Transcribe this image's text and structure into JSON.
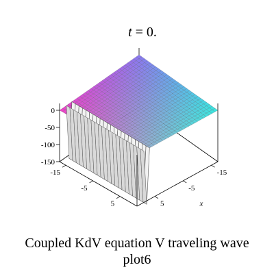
{
  "chart_data": {
    "type": "surface3d",
    "title_var": "t",
    "title_rest": " = 0.",
    "x_axis_label": "x",
    "z_ticks": [
      0,
      -50,
      -100,
      -150
    ],
    "y_ticks": [
      -15,
      -5,
      5
    ],
    "x_ticks": [
      -15,
      -5,
      5
    ],
    "surface_z_range": [
      -150,
      10
    ],
    "plane_level": 0,
    "wave_trough": -160,
    "colors": {
      "corner_left": "#f040c8",
      "corner_top": "#8a78f0",
      "corner_right": "#38e8e0",
      "corner_bottom": "#a0a8cc",
      "wave_fill": "#f2f2f2",
      "grid_line": "#555555",
      "axes": "#000000"
    }
  },
  "caption": {
    "line1": "Coupled KdV equation V traveling wave",
    "line2": "plot6"
  }
}
